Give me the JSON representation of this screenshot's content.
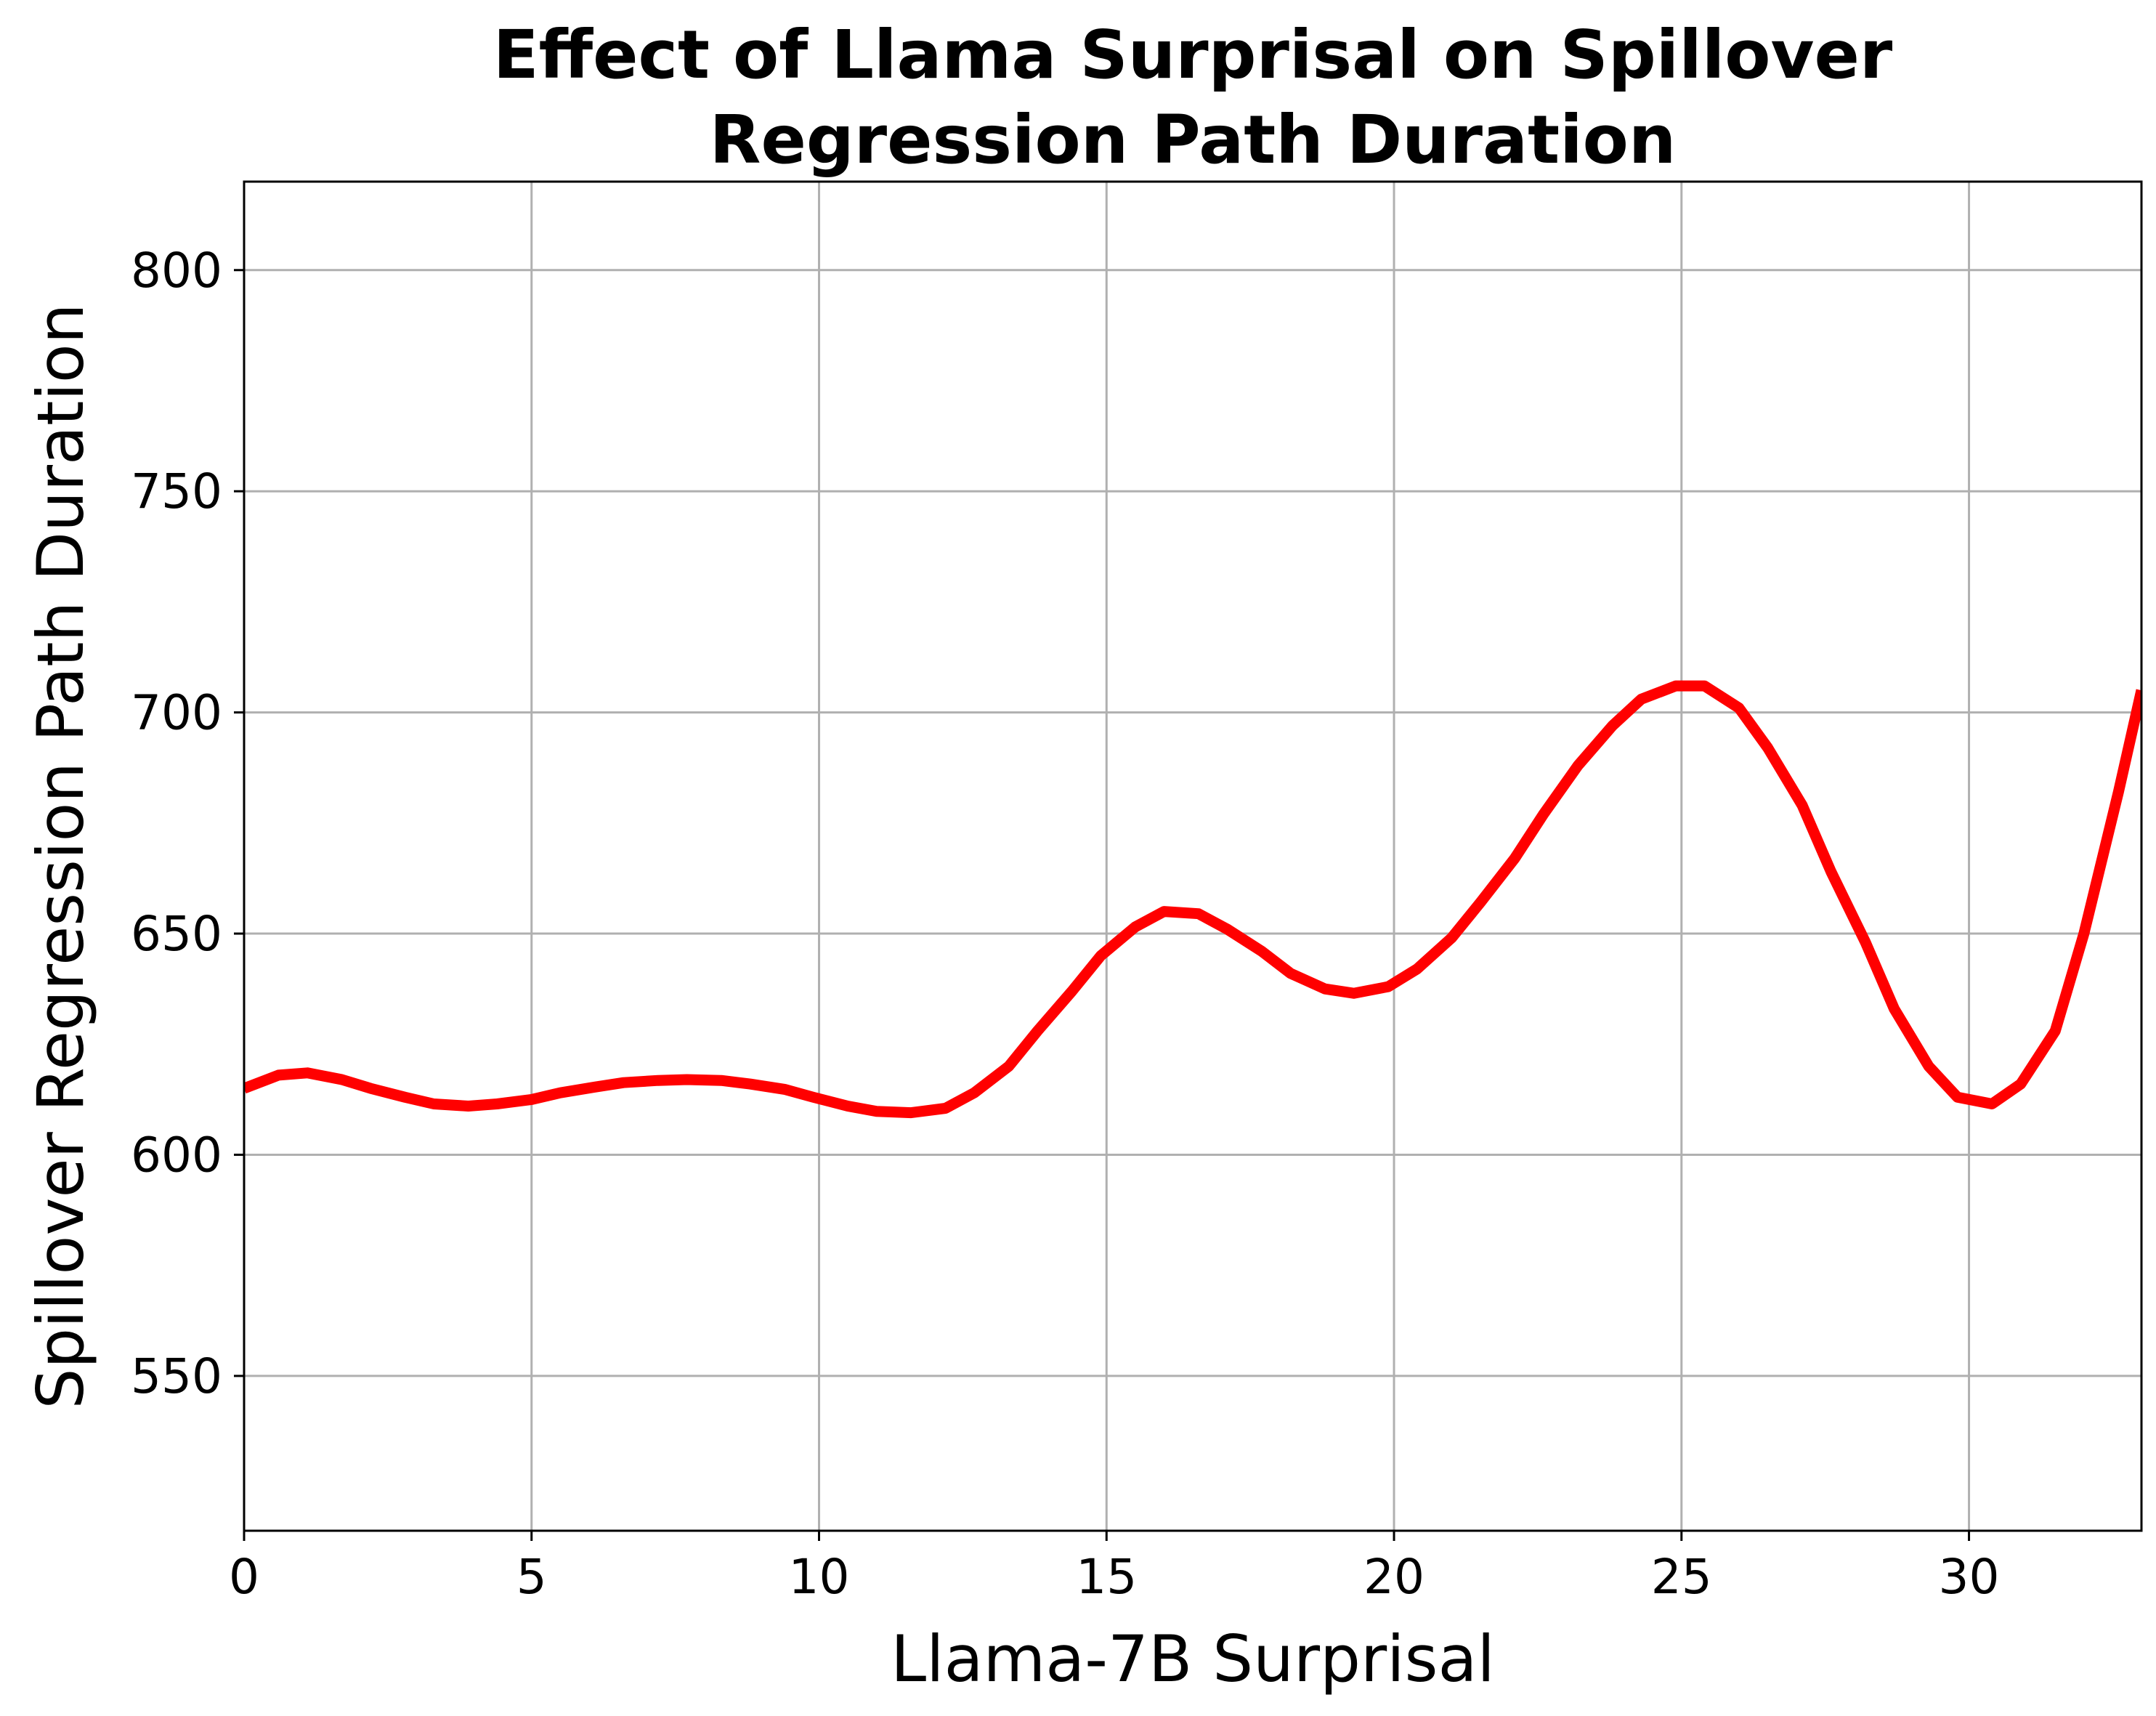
{
  "chart_data": {
    "type": "line",
    "title": [
      "Effect of Llama Surprisal on Spillover",
      "Regression Path Duration"
    ],
    "xlabel": "Llama-7B Surprisal",
    "ylabel": "Spillover Regression Path Duration",
    "xlim": [
      0,
      33
    ],
    "ylim": [
      515,
      820
    ],
    "xticks": [
      0,
      5,
      10,
      15,
      20,
      25,
      30
    ],
    "yticks": [
      550,
      600,
      650,
      700,
      750,
      800
    ],
    "grid": true,
    "line_color": "#ff0000",
    "series": [
      {
        "x": [
          0,
          0.6,
          1.1,
          1.7,
          2.2,
          2.8,
          3.3,
          3.9,
          4.4,
          5.0,
          5.5,
          6.1,
          6.6,
          7.2,
          7.7,
          8.3,
          8.8,
          9.4,
          9.9,
          10.5,
          11.0,
          11.6,
          12.2,
          12.7,
          13.3,
          13.8,
          14.4,
          14.9,
          15.5,
          16.0,
          16.6,
          17.1,
          17.7,
          18.2,
          18.8,
          19.3,
          19.9,
          20.4,
          21.0,
          21.5,
          22.1,
          22.6,
          23.2,
          23.8,
          24.3,
          24.9,
          25.4,
          26.0,
          26.5,
          27.1,
          27.6,
          28.2,
          28.7,
          29.3,
          29.8,
          30.4,
          30.9,
          31.5,
          32.0,
          32.6,
          33.0
        ],
        "y": [
          615,
          618,
          618.5,
          617,
          615,
          613,
          611.5,
          611,
          611.5,
          612.5,
          614,
          615.3,
          616.3,
          616.8,
          617,
          616.8,
          616,
          614.8,
          613,
          611,
          609.8,
          609.5,
          610.5,
          614,
          620,
          628,
          637,
          645,
          651.5,
          655,
          654.5,
          651,
          646,
          641,
          637.5,
          636.5,
          638,
          642,
          649,
          657,
          667,
          677,
          688,
          697,
          703,
          706,
          706,
          701,
          692,
          679,
          664,
          648,
          633,
          620,
          613,
          611.5,
          616,
          628,
          650,
          682,
          705
        ]
      }
    ]
  }
}
